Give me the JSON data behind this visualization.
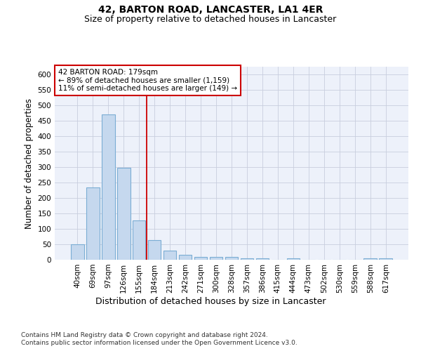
{
  "title": "42, BARTON ROAD, LANCASTER, LA1 4ER",
  "subtitle": "Size of property relative to detached houses in Lancaster",
  "xlabel": "Distribution of detached houses by size in Lancaster",
  "ylabel": "Number of detached properties",
  "footnote1": "Contains HM Land Registry data © Crown copyright and database right 2024.",
  "footnote2": "Contains public sector information licensed under the Open Government Licence v3.0.",
  "categories": [
    "40sqm",
    "69sqm",
    "97sqm",
    "126sqm",
    "155sqm",
    "184sqm",
    "213sqm",
    "242sqm",
    "271sqm",
    "300sqm",
    "328sqm",
    "357sqm",
    "386sqm",
    "415sqm",
    "444sqm",
    "473sqm",
    "502sqm",
    "530sqm",
    "559sqm",
    "588sqm",
    "617sqm"
  ],
  "values": [
    50,
    235,
    470,
    298,
    128,
    63,
    30,
    16,
    10,
    10,
    9,
    5,
    5,
    0,
    5,
    0,
    0,
    0,
    0,
    5,
    5
  ],
  "bar_color": "#c5d8ee",
  "bar_edgecolor": "#7badd4",
  "reference_line_color": "#cc0000",
  "reference_bar_index": 5,
  "annotation_line1": "42 BARTON ROAD: 179sqm",
  "annotation_line2": "← 89% of detached houses are smaller (1,159)",
  "annotation_line3": "11% of semi-detached houses are larger (149) →",
  "annotation_box_facecolor": "#ffffff",
  "annotation_box_edgecolor": "#cc0000",
  "ylim": [
    0,
    625
  ],
  "yticks": [
    0,
    50,
    100,
    150,
    200,
    250,
    300,
    350,
    400,
    450,
    500,
    550,
    600
  ],
  "background_color": "#edf1fa",
  "grid_color": "#c8cede",
  "title_fontsize": 10,
  "subtitle_fontsize": 9,
  "ylabel_fontsize": 8.5,
  "xlabel_fontsize": 9,
  "tick_fontsize": 7.5,
  "annotation_fontsize": 7.5,
  "footnote_fontsize": 6.5
}
